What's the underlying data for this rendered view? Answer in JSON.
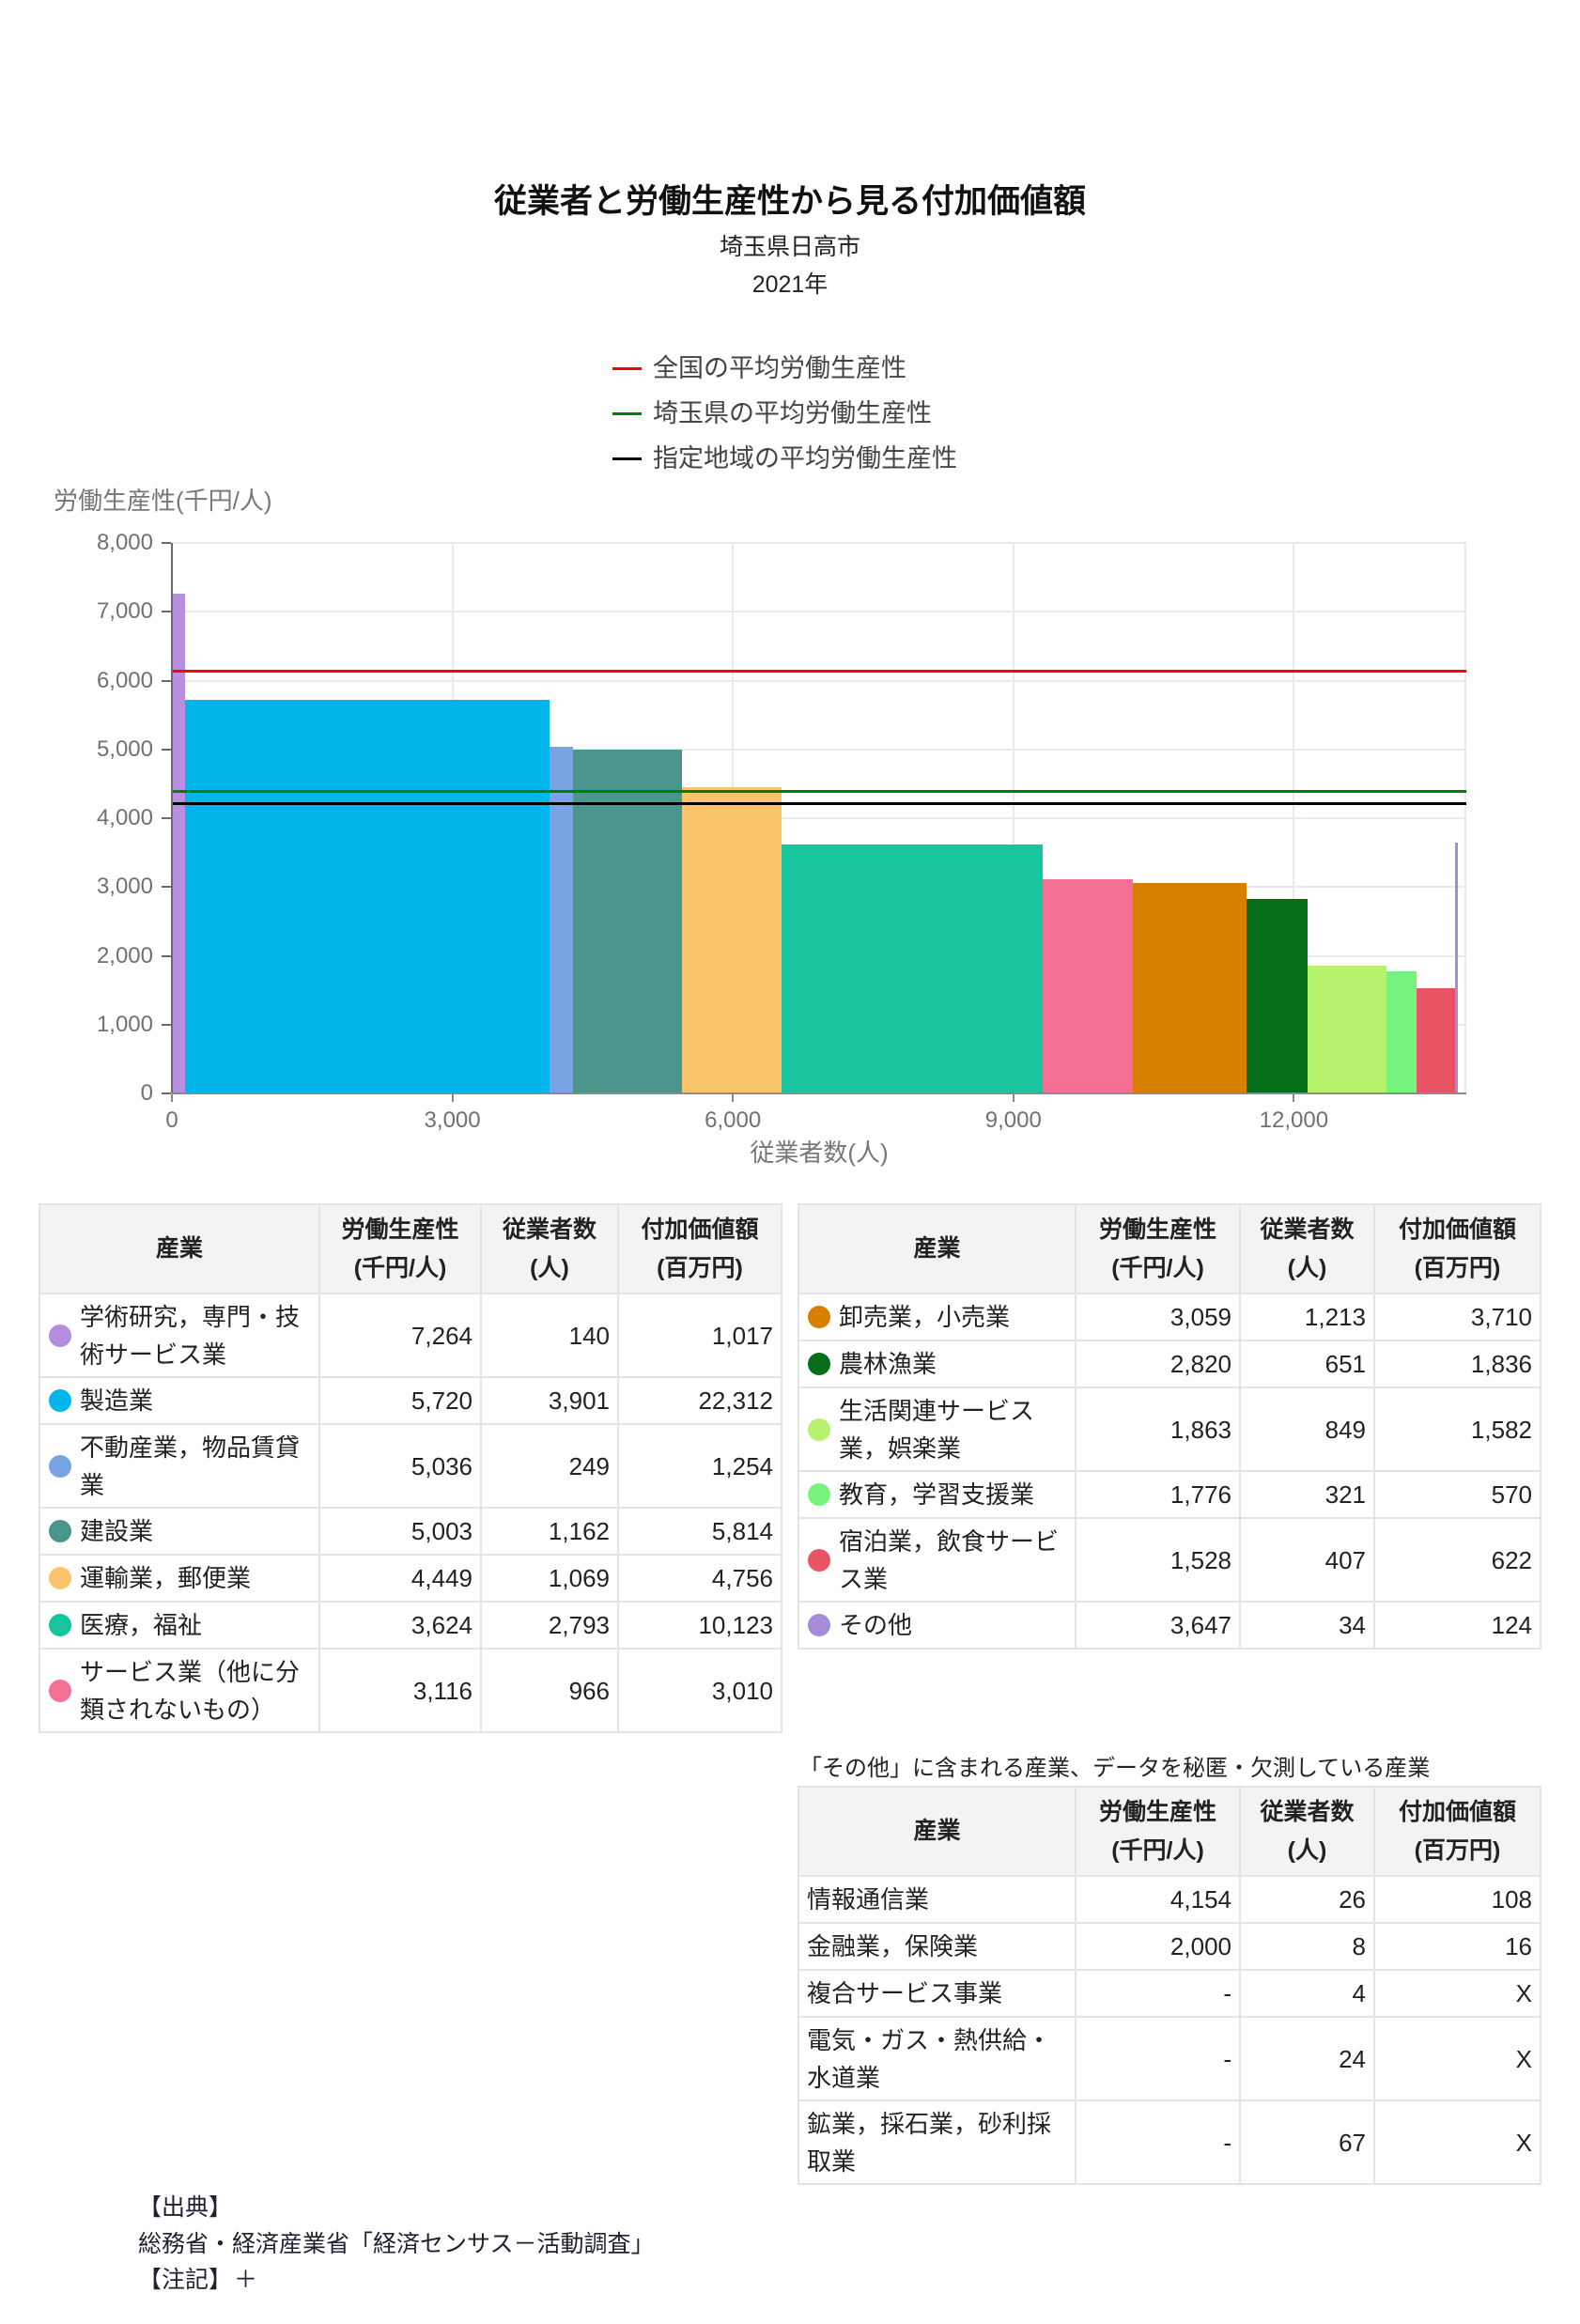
{
  "chart_data": {
    "type": "bar",
    "variant": "variable-width bar (bar width = 従業者数, bar height = 労働生産性)",
    "title": "従業者と労働生産性から見る付加価値額",
    "subtitle": "埼玉県日高市",
    "year": "2021年",
    "xlabel": "従業者数(人)",
    "ylabel": "労働生産性(千円/人)",
    "xlim": [
      0,
      13845
    ],
    "ylim": [
      0,
      8000
    ],
    "grid": true,
    "legend_position": "top",
    "xticks": {
      "values": [
        0,
        3000,
        6000,
        9000,
        12000
      ],
      "labels": [
        "0",
        "3,000",
        "6,000",
        "9,000",
        "12,000"
      ]
    },
    "yticks": {
      "values": [
        0,
        1000,
        2000,
        3000,
        4000,
        5000,
        6000,
        7000,
        8000
      ],
      "labels": [
        "0",
        "1,000",
        "2,000",
        "3,000",
        "4,000",
        "5,000",
        "6,000",
        "7,000",
        "8,000"
      ]
    },
    "categories": [
      "学術研究，専門・技術サービス業",
      "製造業",
      "不動産業，物品賃貸業",
      "建設業",
      "運輸業，郵便業",
      "医療，福祉",
      "サービス業（他に分類されないもの）",
      "卸売業，小売業",
      "農林漁業",
      "生活関連サービス業，娯楽業",
      "教育，学習支援業",
      "宿泊業，飲食サービス業",
      "その他"
    ],
    "series": [
      {
        "name": "労働生産性(千円/人)",
        "values": [
          7264,
          5720,
          5036,
          5003,
          4449,
          3624,
          3116,
          3059,
          2820,
          1863,
          1776,
          1528,
          3647
        ]
      },
      {
        "name": "従業者数(人)",
        "values": [
          140,
          3901,
          249,
          1162,
          1069,
          2793,
          966,
          1213,
          651,
          849,
          321,
          407,
          34
        ]
      }
    ],
    "bars": [
      {
        "name": "学術研究，専門・技術サービス業",
        "employees": 140,
        "productivity": 7264,
        "color": "#b98fe0"
      },
      {
        "name": "製造業",
        "employees": 3901,
        "productivity": 5720,
        "color": "#00b5e9"
      },
      {
        "name": "不動産業，物品賃貸業",
        "employees": 249,
        "productivity": 5036,
        "color": "#79a3e3"
      },
      {
        "name": "建設業",
        "employees": 1162,
        "productivity": 5003,
        "color": "#4b958c"
      },
      {
        "name": "運輸業，郵便業",
        "employees": 1069,
        "productivity": 4449,
        "color": "#f8c46c"
      },
      {
        "name": "医療，福祉",
        "employees": 2793,
        "productivity": 3624,
        "color": "#18c59f"
      },
      {
        "name": "サービス業（他に分類されないもの）",
        "employees": 966,
        "productivity": 3116,
        "color": "#f36f94"
      },
      {
        "name": "卸売業，小売業",
        "employees": 1213,
        "productivity": 3059,
        "color": "#d67f00"
      },
      {
        "name": "農林漁業",
        "employees": 651,
        "productivity": 2820,
        "color": "#046e18"
      },
      {
        "name": "生活関連サービス業，娯楽業",
        "employees": 849,
        "productivity": 1863,
        "color": "#b6f26c"
      },
      {
        "name": "教育，学習支援業",
        "employees": 321,
        "productivity": 1776,
        "color": "#77f27c"
      },
      {
        "name": "宿泊業，飲食サービス業",
        "employees": 407,
        "productivity": 1528,
        "color": "#e85463"
      },
      {
        "name": "その他",
        "employees": 34,
        "productivity": 3647,
        "color": "#a68bd9"
      }
    ],
    "lines": [
      {
        "name": "全国の平均労働生産性",
        "value": 6130,
        "color": "#ff0000"
      },
      {
        "name": "埼玉県の平均労働生産性",
        "value": 4395,
        "color": "#008000"
      },
      {
        "name": "指定地域の平均労働生産性",
        "value": 4205,
        "color": "#000000"
      }
    ]
  },
  "tables": {
    "header": {
      "industry": "産業",
      "productivity": [
        "労働生産性",
        "(千円/人)"
      ],
      "employees": [
        "従業者数",
        "(人)"
      ],
      "value_added": [
        "付加価値額",
        "(百万円)"
      ]
    },
    "left": {
      "rows": [
        {
          "name": "学術研究，専門・技術サービス業",
          "productivity": "7,264",
          "employees": "140",
          "value_added": "1,017",
          "color": "#b58ddf"
        },
        {
          "name": "製造業",
          "productivity": "5,720",
          "employees": "3,901",
          "value_added": "22,312",
          "color": "#00b5ea"
        },
        {
          "name": "不動産業，物品賃貸業",
          "productivity": "5,036",
          "employees": "249",
          "value_added": "1,254",
          "color": "#79a3e3"
        },
        {
          "name": "建設業",
          "productivity": "5,003",
          "employees": "1,162",
          "value_added": "5,814",
          "color": "#4b9489"
        },
        {
          "name": "運輸業，郵便業",
          "productivity": "4,449",
          "employees": "1,069",
          "value_added": "4,756",
          "color": "#f9c46b"
        },
        {
          "name": "医療，福祉",
          "productivity": "3,624",
          "employees": "2,793",
          "value_added": "10,123",
          "color": "#17c59c"
        },
        {
          "name": "サービス業（他に分類されないもの）",
          "productivity": "3,116",
          "employees": "966",
          "value_added": "3,010",
          "color": "#f36f94"
        }
      ]
    },
    "right": {
      "rows": [
        {
          "name": "卸売業，小売業",
          "productivity": "3,059",
          "employees": "1,213",
          "value_added": "3,710",
          "color": "#d67f00"
        },
        {
          "name": "農林漁業",
          "productivity": "2,820",
          "employees": "651",
          "value_added": "1,836",
          "color": "#046e18"
        },
        {
          "name": "生活関連サービス業，娯楽業",
          "productivity": "1,863",
          "employees": "849",
          "value_added": "1,582",
          "color": "#b6f26c"
        },
        {
          "name": "教育，学習支援業",
          "productivity": "1,776",
          "employees": "321",
          "value_added": "570",
          "color": "#77f27c"
        },
        {
          "name": "宿泊業，飲食サービス業",
          "productivity": "1,528",
          "employees": "407",
          "value_added": "622",
          "color": "#e85463"
        },
        {
          "name": "その他",
          "productivity": "3,647",
          "employees": "34",
          "value_added": "124",
          "color": "#a68bd9"
        }
      ]
    },
    "other": {
      "title": "「その他」に含まれる産業、データを秘匿・欠測している産業",
      "rows": [
        {
          "name": "情報通信業",
          "productivity": "4,154",
          "employees": "26",
          "value_added": "108"
        },
        {
          "name": "金融業，保険業",
          "productivity": "2,000",
          "employees": "8",
          "value_added": "16"
        },
        {
          "name": "複合サービス事業",
          "productivity": "-",
          "employees": "4",
          "value_added": "X"
        },
        {
          "name": "電気・ガス・熱供給・水道業",
          "productivity": "-",
          "employees": "24",
          "value_added": "X"
        },
        {
          "name": "鉱業，採石業，砂利採取業",
          "productivity": "-",
          "employees": "67",
          "value_added": "X"
        }
      ]
    }
  },
  "footer": {
    "source_label": "【出典】",
    "source": "総務省・経済産業省「経済センサス－活動調査」",
    "notes_label": "【注記】",
    "notes_toggle": "＋"
  }
}
